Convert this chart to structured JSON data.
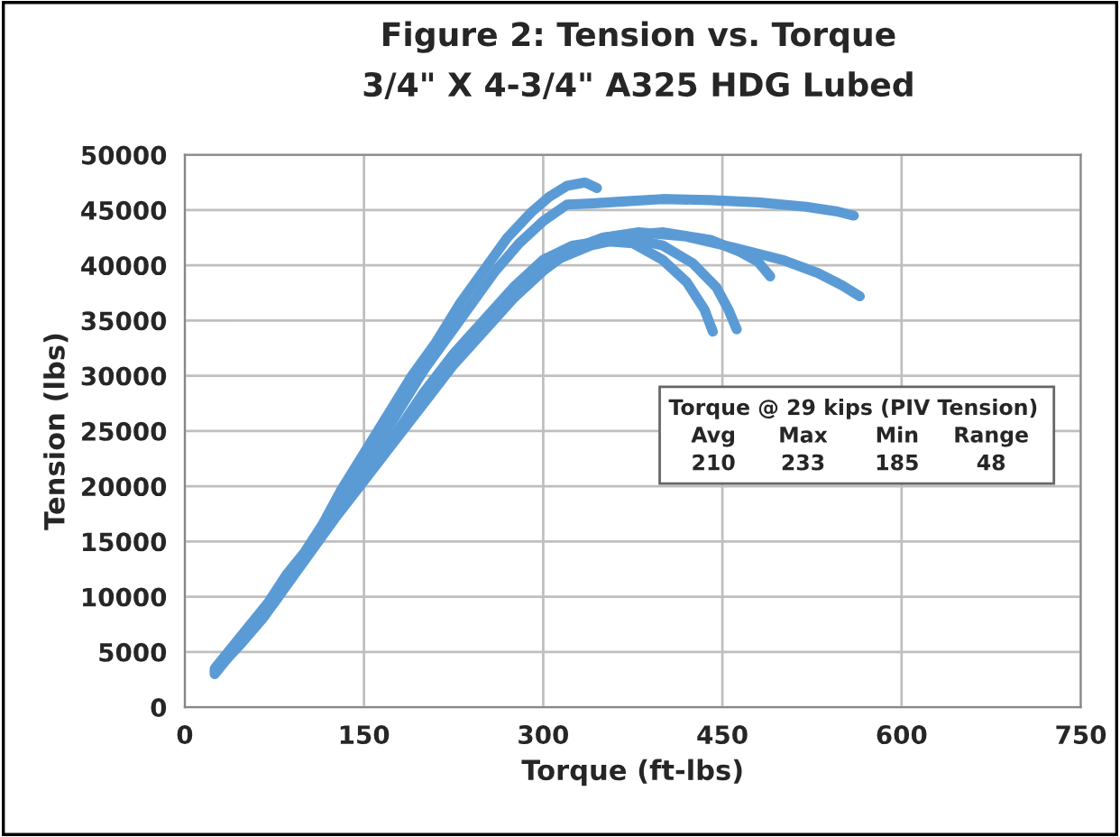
{
  "chart_data": {
    "type": "line",
    "title": "Figure 2: Tension vs. Torque",
    "subtitle": "3/4\" X 4-3/4\" A325 HDG Lubed",
    "xlabel": "Torque (ft-lbs)",
    "ylabel": "Tension (lbs)",
    "xlim": [
      0,
      750
    ],
    "xticks": [
      0,
      150,
      300,
      450,
      600,
      750
    ],
    "ylim": [
      0,
      50000
    ],
    "yticks": [
      0,
      5000,
      10000,
      15000,
      20000,
      25000,
      30000,
      35000,
      40000,
      45000,
      50000
    ],
    "grid": true,
    "legend": false,
    "marker": "none",
    "line_style": "solid",
    "series": [
      {
        "color": "#5b9bd5",
        "x": [
          25,
          40,
          55,
          70,
          85,
          100,
          115,
          130,
          150,
          170,
          190,
          210,
          230,
          250,
          270,
          290,
          305,
          320,
          335,
          345
        ],
        "values": [
          3500,
          5500,
          7500,
          9500,
          12000,
          14000,
          16500,
          19500,
          23000,
          26500,
          30000,
          33000,
          36500,
          39500,
          42500,
          44800,
          46200,
          47200,
          47500,
          47000
        ]
      },
      {
        "color": "#5b9bd5",
        "x": [
          25,
          40,
          55,
          70,
          85,
          100,
          120,
          140,
          160,
          180,
          200,
          220,
          240,
          260,
          280,
          300,
          320,
          340,
          370,
          400,
          440,
          480,
          520,
          545,
          560
        ],
        "values": [
          3000,
          5000,
          7000,
          9000,
          11500,
          13500,
          16500,
          20000,
          23500,
          27000,
          30500,
          33500,
          36500,
          39500,
          42000,
          44000,
          45500,
          45600,
          45800,
          46000,
          45900,
          45700,
          45300,
          44900,
          44500
        ]
      },
      {
        "color": "#5b9bd5",
        "x": [
          25,
          45,
          65,
          85,
          105,
          125,
          150,
          175,
          200,
          225,
          250,
          275,
          300,
          325,
          350,
          380,
          420,
          460,
          500,
          530,
          550,
          565
        ],
        "values": [
          3200,
          5500,
          8000,
          11000,
          14000,
          17000,
          20500,
          24000,
          27500,
          31000,
          34000,
          37000,
          39500,
          41500,
          42500,
          43000,
          42600,
          41600,
          40500,
          39300,
          38200,
          37200
        ]
      },
      {
        "color": "#5b9bd5",
        "x": [
          25,
          50,
          75,
          100,
          125,
          150,
          175,
          200,
          225,
          250,
          275,
          300,
          325,
          350,
          375,
          400,
          420,
          435,
          442
        ],
        "values": [
          3300,
          6200,
          9500,
          13500,
          17500,
          21000,
          24500,
          28500,
          32000,
          35000,
          38000,
          40500,
          41800,
          42200,
          42000,
          40500,
          38500,
          36000,
          34000
        ]
      },
      {
        "color": "#5b9bd5",
        "x": [
          300,
          340,
          370,
          400,
          425,
          445,
          455,
          462
        ],
        "values": [
          40000,
          41800,
          42500,
          41800,
          40200,
          38000,
          36000,
          34200
        ]
      },
      {
        "color": "#5b9bd5",
        "x": [
          300,
          350,
          400,
          440,
          465,
          480,
          490
        ],
        "values": [
          40300,
          42500,
          43000,
          42300,
          41200,
          40300,
          39000
        ]
      }
    ],
    "annotations": [
      "Torque @ 29 kips (PIV Tension)",
      "Avg",
      "Max",
      "Min",
      "Range",
      "210",
      "233",
      "185",
      "48"
    ]
  }
}
